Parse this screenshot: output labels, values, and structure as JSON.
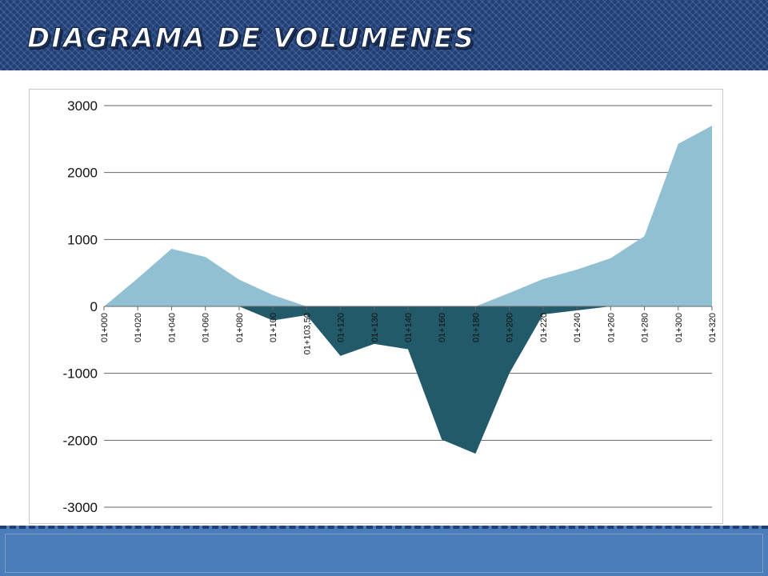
{
  "header": {
    "title": "DIAGRAMA DE VOLUMENES"
  },
  "colors": {
    "header_bg": "#1f3f78",
    "footer_bg": "#4a7db9",
    "series_positive": "#92c0d3",
    "series_negative": "#235a6a",
    "gridline": "#666666"
  },
  "chart_data": {
    "type": "area",
    "title": "",
    "xlabel": "",
    "ylabel": "",
    "ylim": [
      -3000,
      3000
    ],
    "yticks": [
      3000,
      2000,
      1000,
      0,
      -1000,
      -2000,
      -3000
    ],
    "grid": true,
    "categories": [
      "01+000",
      "01+020",
      "01+040",
      "01+060",
      "01+080",
      "01+100",
      "01+103,50",
      "01+120",
      "01+130",
      "01+140",
      "01+160",
      "01+180",
      "01+200",
      "01+220",
      "01+240",
      "01+260",
      "01+280",
      "01+300",
      "01+320"
    ],
    "series": [
      {
        "color": "#92c0d3",
        "values": [
          0,
          420,
          860,
          740,
          400,
          170,
          0,
          0,
          0,
          0,
          0,
          0,
          200,
          410,
          550,
          720,
          1050,
          2430,
          2700
        ]
      },
      {
        "color": "#235a6a",
        "values": [
          0,
          0,
          0,
          0,
          0,
          -210,
          -130,
          -740,
          -560,
          -640,
          -1990,
          -2200,
          -1000,
          -120,
          -60,
          0,
          0,
          0,
          0
        ]
      }
    ]
  }
}
